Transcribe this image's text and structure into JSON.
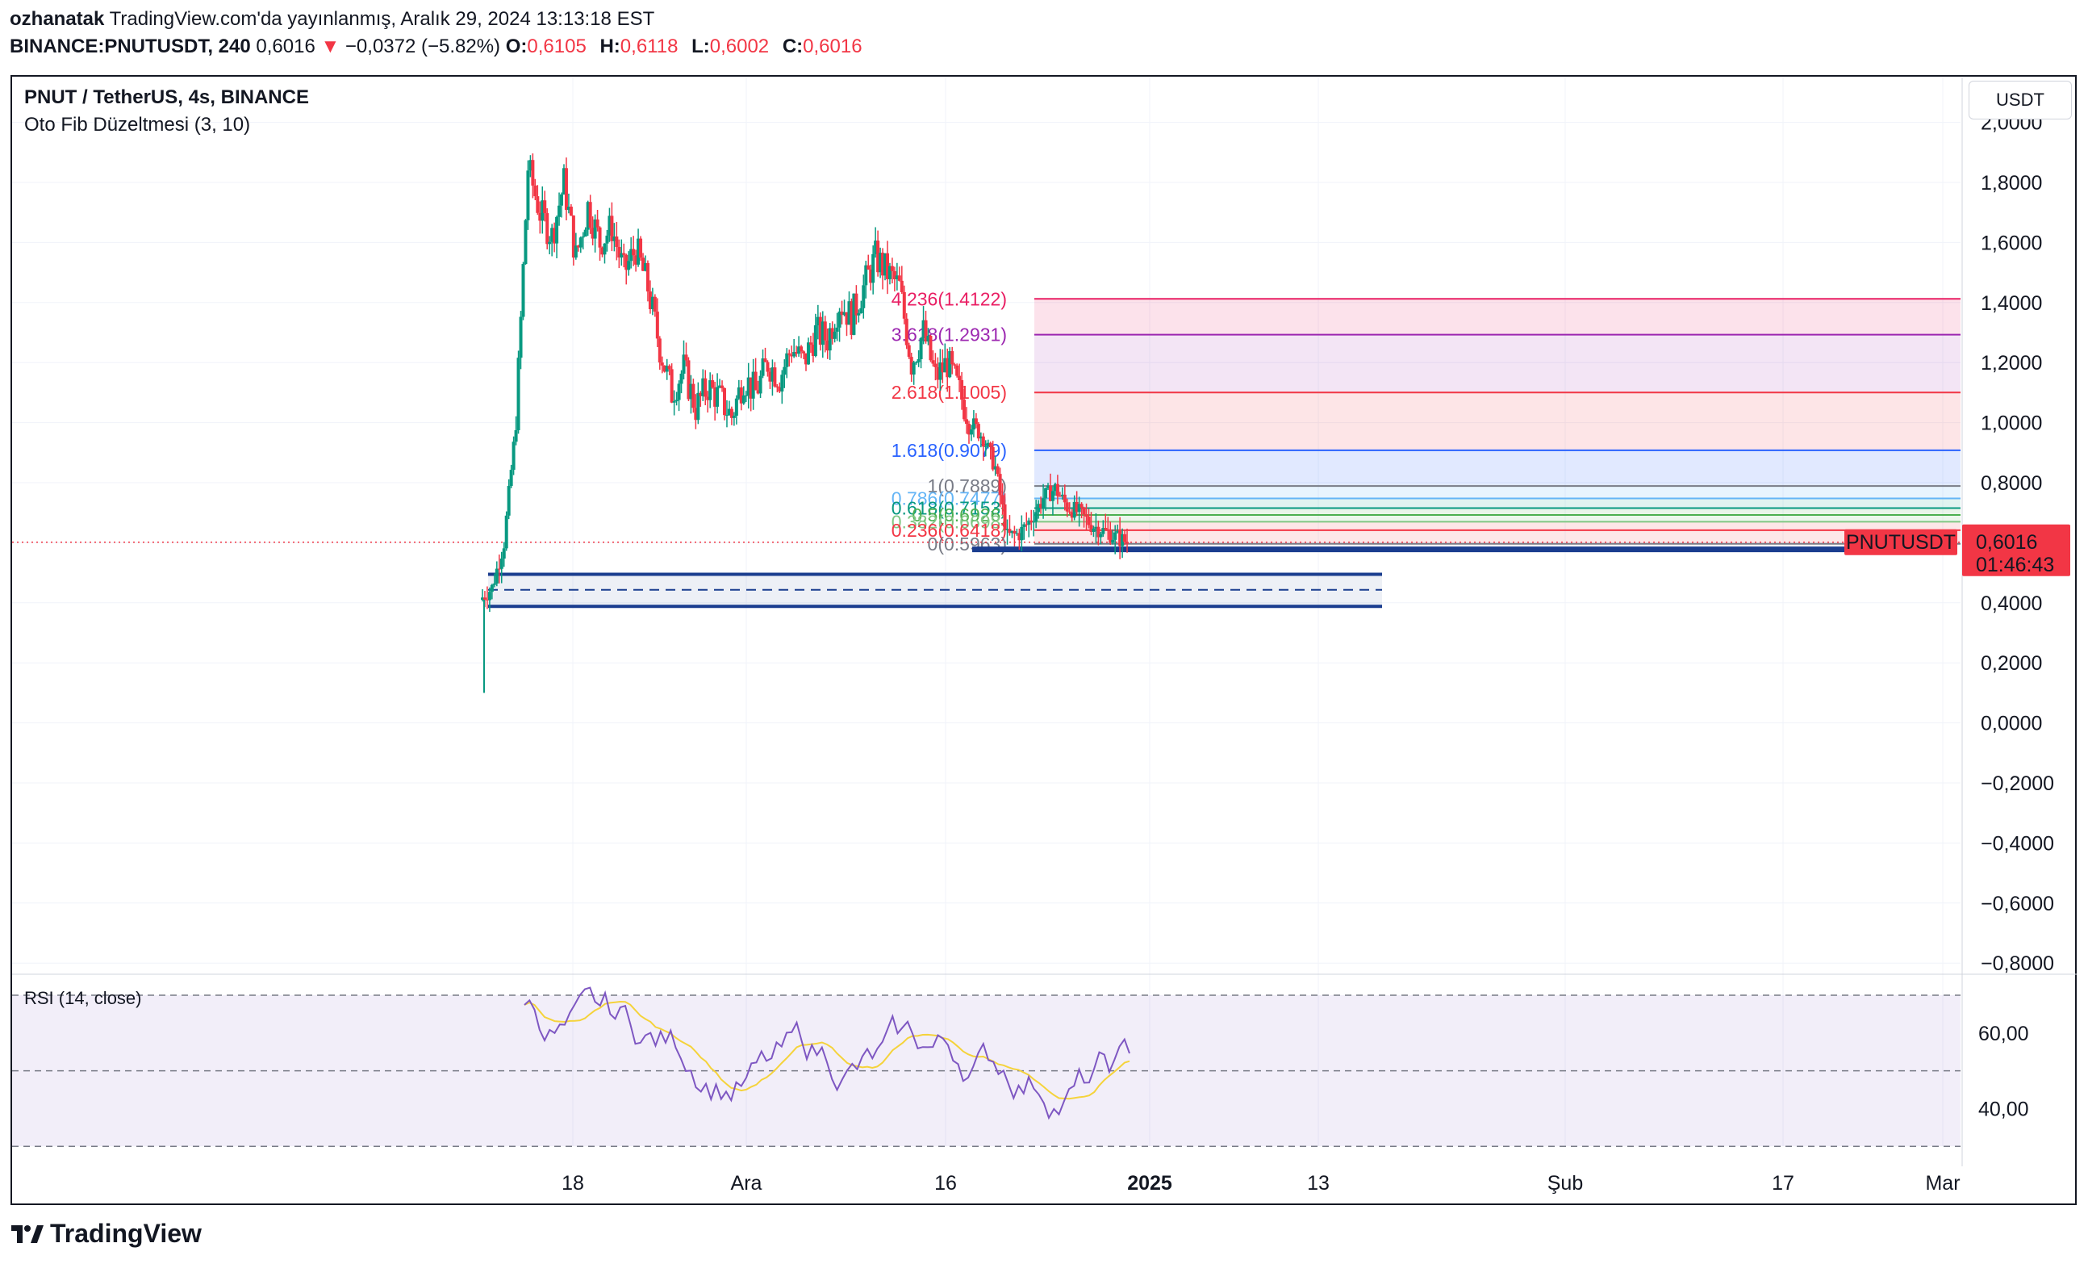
{
  "header": {
    "user": "ozhanatak",
    "published": "TradingView.com'da yayınlanmış, Aralık 29, 2024 13:13:18 EST",
    "symbol": "BINANCE:PNUTUSDT, 240",
    "last": "0,6016",
    "change_arrow": "▼",
    "change": "−0,0372 (−5.82%)",
    "ohlc": [
      {
        "label": "O:",
        "value": "0,6105"
      },
      {
        "label": "H:",
        "value": "0,6118"
      },
      {
        "label": "L:",
        "value": "0,6002"
      },
      {
        "label": "C:",
        "value": "0,6016"
      }
    ]
  },
  "legend": {
    "title": "PNUT / TetherUS, 4s, BINANCE",
    "indicator": "Oto Fib Düzeltmesi (3, 10)"
  },
  "currency_button": "USDT",
  "price_badge": {
    "symbol": "PNUTUSDT",
    "price": "0,6016",
    "countdown": "01:46:43",
    "color": "#f23645"
  },
  "rsi": {
    "title": "RSI (14, close)",
    "upper": 70,
    "middle": 50,
    "lower": 30
  },
  "footer": {
    "brand": "TradingView"
  },
  "colors": {
    "up": "#089981",
    "down": "#f23645",
    "rsi_line": "#7e57c2",
    "rsi_ma": "#f5d33b",
    "zone": "#1a3d8f"
  },
  "chart_data": {
    "type": "candlestick",
    "title": "PNUT / TetherUS, 4s, BINANCE",
    "y_ticks": [
      "2,0000",
      "1,8000",
      "1,6000",
      "1,4000",
      "1,2000",
      "1,0000",
      "0,8000",
      "0,6000",
      "0,4000",
      "0,2000",
      "0,0000",
      "−0,2000",
      "−0,4000",
      "−0,6000",
      "−0,8000"
    ],
    "y_tick_values": [
      2.0,
      1.8,
      1.6,
      1.4,
      1.2,
      1.0,
      0.8,
      0.6,
      0.4,
      0.2,
      0.0,
      -0.2,
      -0.4,
      -0.6,
      -0.8
    ],
    "ylim": [
      -0.85,
      2.03
    ],
    "x_ticks": [
      "18",
      "Ara",
      "16",
      "2025",
      "13",
      "Şub",
      "17",
      "Mar"
    ],
    "rsi_ticks": [
      "60,00",
      "40,00"
    ],
    "fib_levels": [
      {
        "ratio": "4.236",
        "price": 1.4122,
        "label": "4.236(1.4122)",
        "color": "#e91e63"
      },
      {
        "ratio": "3.618",
        "price": 1.2931,
        "label": "3.618(1.2931)",
        "color": "#9c27b0"
      },
      {
        "ratio": "2.618",
        "price": 1.1005,
        "label": "2.618(1.1005)",
        "color": "#f23645"
      },
      {
        "ratio": "1.618",
        "price": 0.9079,
        "label": "1.618(0.9079)",
        "color": "#2962ff"
      },
      {
        "ratio": "1",
        "price": 0.7889,
        "label": "1(0.7889)",
        "color": "#787b86"
      },
      {
        "ratio": "0.786",
        "price": 0.7477,
        "label": "0.786(0.7477)",
        "color": "#64b5f6"
      },
      {
        "ratio": "0.618",
        "price": 0.7153,
        "label": "0.618(0.7153)",
        "color": "#089981"
      },
      {
        "ratio": "0.5",
        "price": 0.6926,
        "label": "0.5(0.6926)",
        "color": "#4caf50"
      },
      {
        "ratio": "0.382",
        "price": 0.6698,
        "label": "0.382(0.6698)",
        "color": "#81c784"
      },
      {
        "ratio": "0.236",
        "price": 0.6418,
        "label": "0.236(0.6418)",
        "color": "#f23645"
      },
      {
        "ratio": "0",
        "price": 0.5963,
        "label": "0(0.5963)",
        "color": "#787b86"
      }
    ],
    "demand_zone": {
      "top": 0.495,
      "mid": 0.443,
      "bottom": 0.388
    },
    "last_price": 0.6016,
    "candles_close_path": [
      0.41,
      0.45,
      0.6,
      1.0,
      1.85,
      1.7,
      1.62,
      1.8,
      1.55,
      1.72,
      1.6,
      1.65,
      1.5,
      1.58,
      1.45,
      1.25,
      1.1,
      1.18,
      1.05,
      1.12,
      1.08,
      1.02,
      1.15,
      1.1,
      1.2,
      1.15,
      1.25,
      1.2,
      1.3,
      1.28,
      1.4,
      1.35,
      1.45,
      1.55,
      1.5,
      1.45,
      1.2,
      1.3,
      1.15,
      1.2,
      1.1,
      1.0,
      0.95,
      0.85,
      0.62,
      0.63,
      0.68,
      0.75,
      0.78,
      0.72,
      0.7,
      0.66,
      0.64,
      0.62,
      0.6016
    ]
  }
}
